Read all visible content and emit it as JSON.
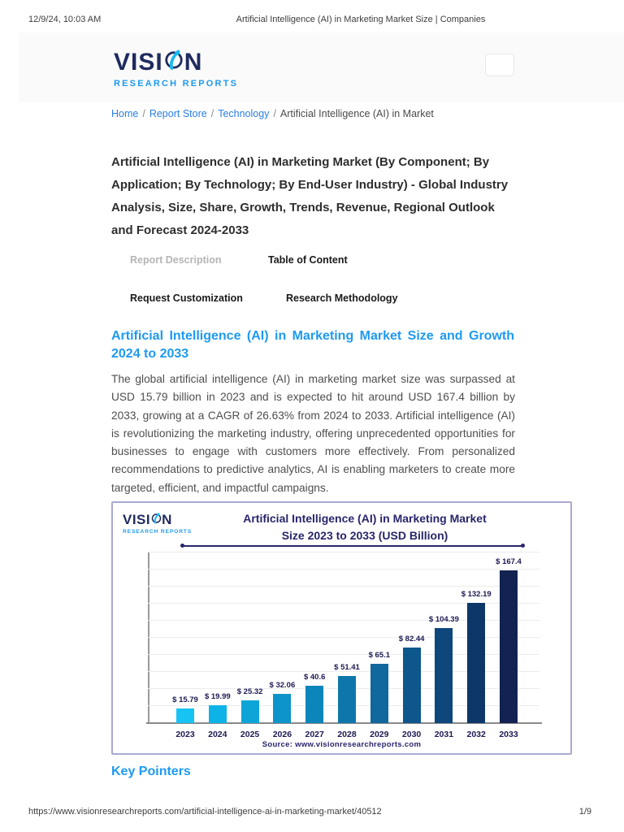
{
  "colors": {
    "accent_blue": "#1e9af1",
    "link_blue": "#2b7de3",
    "navy": "#1f2a5e",
    "chart_navy": "#29256b",
    "chart_border": "#a9a9cf"
  },
  "print_header": {
    "datetime": "12/9/24, 10:03 AM",
    "title": "Artificial Intelligence (AI) in Marketing Market Size | Companies"
  },
  "print_footer": {
    "url": "https://www.visionresearchreports.com/artificial-intelligence-ai-in-marketing-market/40512",
    "page": "1/9"
  },
  "logo": {
    "brand_pre": "VISI",
    "brand_post": "N",
    "subtitle": "RESEARCH REPORTS"
  },
  "breadcrumb": {
    "separator": "/",
    "items": [
      {
        "label": "Home",
        "link": true
      },
      {
        "label": "Report Store",
        "link": true
      },
      {
        "label": "Technology",
        "link": true
      },
      {
        "label": "Artificial Intelligence (AI) in Market",
        "link": false
      }
    ]
  },
  "report": {
    "title": "Artificial Intelligence (AI) in Marketing Market (By Component; By Application; By Technology; By End-User Industry) - Global Industry Analysis, Size, Share, Growth, Trends, Revenue, Regional Outlook and Forecast 2024-2033",
    "tabs": [
      {
        "label": "Report Description",
        "state": "muted"
      },
      {
        "label": "Table of Content",
        "state": "normal"
      },
      {
        "label": "Request Customization",
        "state": "normal"
      },
      {
        "label": "Research Methodology",
        "state": "normal"
      }
    ]
  },
  "section": {
    "heading": "Artificial Intelligence (AI) in Marketing Market Size and Growth 2024 to 2033",
    "paragraph": "The global artificial intelligence (AI) in marketing market size was surpassed at USD 15.79 billion in 2023 and is expected to hit around USD 167.4 billion by 2033, growing at a CAGR of 26.63% from 2024 to 2033. Artificial intelligence (AI) is revolutionizing the marketing industry, offering unprecedented opportunities for businesses to engage with customers more effectively. From personalized recommendations to predictive analytics, AI is enabling marketers to create more targeted, efficient, and impactful campaigns.",
    "next_heading": "Key Pointers"
  },
  "chart_data": {
    "type": "bar",
    "title": "Artificial Intelligence (AI) in Marketing Market Size 2023 to 2033 (USD Billion)",
    "title_line1": "Artificial Intelligence (AI) in Marketing Market",
    "title_line2": "Size 2023 to 2033 (USD Billion)",
    "categories": [
      "2023",
      "2024",
      "2025",
      "2026",
      "2027",
      "2028",
      "2029",
      "2030",
      "2031",
      "2032",
      "2033"
    ],
    "values": [
      15.79,
      19.99,
      25.32,
      32.06,
      40.6,
      51.41,
      65.1,
      82.44,
      104.39,
      132.19,
      167.4
    ],
    "labels": [
      "$ 15.79",
      "$ 19.99",
      "$ 25.32",
      "$ 32.06",
      "$ 40.6",
      "$ 51.41",
      "$ 65.1",
      "$ 82.44",
      "$ 104.39",
      "$ 132.19",
      "$ 167.4"
    ],
    "bar_colors": [
      "#17c3f2",
      "#0db3e6",
      "#0ea4d8",
      "#0d94c8",
      "#0c85ba",
      "#0f76ab",
      "#10689c",
      "#0d578c",
      "#0e477c",
      "#0d3768",
      "#122351"
    ],
    "value_prefix": "$ ",
    "xlabel": "",
    "ylabel": "",
    "ylim": [
      0,
      185
    ],
    "grid": true,
    "legend": false,
    "source": "Source: www.visionresearchreports.com"
  }
}
